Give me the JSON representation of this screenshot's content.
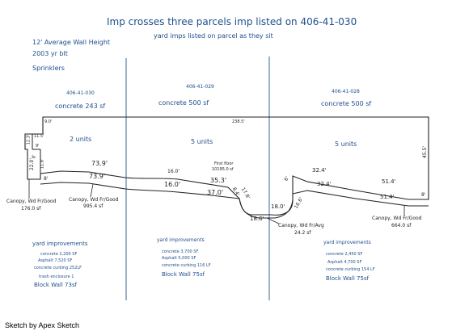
{
  "title": "Imp crosses three parcels imp listed on 406-41-030",
  "subtitle": "yard imps listed on parcel as they sit",
  "header_notes": [
    "12' Average Wall Height",
    "2003 yr blt",
    "Sprinklers"
  ],
  "parcels": [
    {
      "id": "406-41-030",
      "area": "concrete  243 sf",
      "units": "2 units"
    },
    {
      "id": "406-41-029",
      "area": "concrete  500 sf",
      "units": "5 units"
    },
    {
      "id": "406-41-028",
      "area": "concrete  500 sf",
      "units": "5 units"
    }
  ],
  "dimensions": {
    "top_left_short": "9.0'",
    "top_long": "238.5'",
    "right_side": "45.5'",
    "left_step_a": "12.3'",
    "left_step_b": "11.5'",
    "left_step_c": "9'",
    "left_vertical": "22.0'",
    "left_vertical_b": "8'",
    "left_vertical_c": "11.8'",
    "left_8a": "8'",
    "seg_73_outer": "73.9'",
    "seg_73_inner": "73.9'",
    "seg_16_outer": "16.0'",
    "seg_16_inner": "16.0'",
    "seg_35": "35.3'",
    "seg_37": "37.0'",
    "seg_17": "17.8'",
    "seg_8b": "8.4'",
    "seg_18_top": "18.0'",
    "seg_18_bottom": "18.6'",
    "seg_16_right": "16.6'",
    "seg_6": "6'",
    "seg_32_outer": "32.4'",
    "seg_32_inner": "32.4'",
    "seg_51_outer": "51.4'",
    "seg_51_inner": "51.4'",
    "seg_8_right": "8'"
  },
  "first_floor": {
    "label": "First floor",
    "area": "10195.0 sf"
  },
  "canopies": [
    {
      "label": "Canopy, Wd Fr/Good",
      "area": "176.0 sf"
    },
    {
      "label": "Canopy, Wd Fr/Good",
      "area": "995.4 sf"
    },
    {
      "label": "Canopy, Wd Fr/Avg",
      "area": "24.2 sf"
    },
    {
      "label": "Canopy, Wd Fr/Good",
      "area": "664.0 sf"
    }
  ],
  "yard_improvements": [
    {
      "heading": "yard improvements",
      "lines": [
        "concrete 2,200 SF",
        "Asphalt 7,520 SF",
        "concrete curbing 252LF",
        "trash enclosure  1",
        "Block Wall  73sf"
      ]
    },
    {
      "heading": "yard improvements",
      "lines": [
        "concrete 3,700 SF",
        "Asphalt 5,000 SF",
        "concrete curbing 116 LF",
        "Block Wall  75sf"
      ]
    },
    {
      "heading": "yard improvements",
      "lines": [
        "concrete 2,450 SF",
        "Asphalt 4,700 SF",
        "concrete curbing 154 LF",
        "Block Wall  75sf"
      ]
    }
  ],
  "footer": "Sketch by Apex Sketch",
  "colors": {
    "text_blue": "#1f4e8c",
    "line": "#222222",
    "divider": "#5a7fa8"
  }
}
